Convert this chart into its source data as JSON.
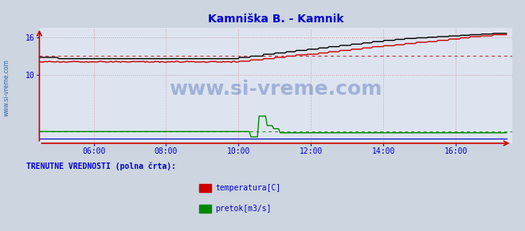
{
  "title": "Kamniška B. - Kamnik",
  "title_color": "#0000cc",
  "bg_color": "#ccd5e0",
  "plot_bg_color": "#dde4f0",
  "grid_color": "#cc8888",
  "axis_color": "#0000cc",
  "watermark_text": "www.si-vreme.com",
  "watermark_color": "#3355aa",
  "sidebar_text": "www.si-vreme.com",
  "sidebar_color": "#3366aa",
  "ylabel_left_ticks": [
    10,
    16
  ],
  "ylim": [
    -0.8,
    17.5
  ],
  "xlim_hours": [
    4.5,
    17.55
  ],
  "x_ticks_hours": [
    6,
    8,
    10,
    12,
    14,
    16
  ],
  "x_tick_labels": [
    "06:00",
    "08:00",
    "10:00",
    "12:00",
    "14:00",
    "16:00"
  ],
  "legend_text": "TRENUTNE VREDNOSTI (polna črta):",
  "legend_color": "#0000cc",
  "legend_items": [
    {
      "label": "temperatura[C]",
      "color": "#cc0000"
    },
    {
      "label": "pretok[m3/s]",
      "color": "#008800"
    }
  ],
  "temp_dashed_level": 13.0,
  "flow_dashed_level": 1.05,
  "temp_color": "#cc0000",
  "flow_color": "#008800",
  "height_color": "#000000",
  "arrow_color": "#cc0000",
  "num_points": 288
}
